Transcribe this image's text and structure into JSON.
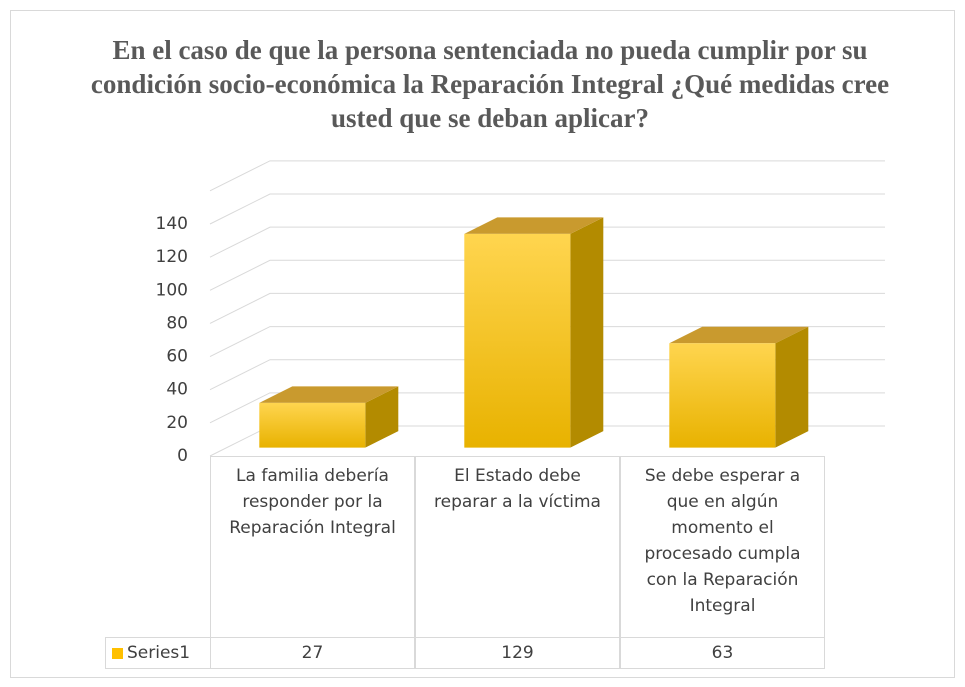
{
  "chart_data": {
    "type": "bar3d",
    "title": "En el caso de que la persona sentenciada no pueda cumplir por su condición socio-económica la Reparación Integral ¿Qué medidas cree usted que se deban aplicar?",
    "categories": [
      "La familia debería responder por la Reparación Integral",
      "El Estado debe reparar a la víctima",
      "Se debe esperar a que en algún momento el procesado cumpla con la Reparación Integral"
    ],
    "series": [
      {
        "name": "Series1",
        "color": "#ffc000",
        "values": [
          27,
          129,
          63
        ]
      }
    ],
    "ylim": [
      0,
      160
    ],
    "yticks": [
      0,
      20,
      40,
      60,
      80,
      100,
      120,
      140
    ],
    "grid": true,
    "legend": "table"
  }
}
